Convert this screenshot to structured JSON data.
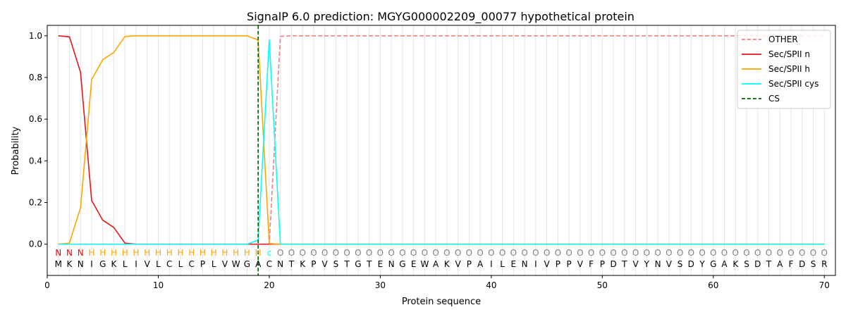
{
  "chart_data": {
    "type": "line",
    "title": "SignalP 6.0 prediction: MGYG000002209_00077 hypothetical protein",
    "xlabel": "Protein sequence",
    "ylabel": "Probability",
    "xlim": [
      0,
      71
    ],
    "ylim": [
      -0.15,
      1.05
    ],
    "x_ticks": [
      0,
      10,
      20,
      30,
      40,
      50,
      60,
      70
    ],
    "y_ticks": [
      0.0,
      0.2,
      0.4,
      0.6,
      0.8,
      1.0
    ],
    "x_tick_labels": [
      "0",
      "10",
      "20",
      "30",
      "40",
      "50",
      "60",
      "70"
    ],
    "y_tick_labels": [
      "0.0",
      "0.2",
      "0.4",
      "0.6",
      "0.8",
      "1.0"
    ],
    "grid": "vertical lines at each residue",
    "legend_position": "top-right",
    "sequence": [
      "M",
      "K",
      "N",
      "I",
      "G",
      "K",
      "L",
      "I",
      "V",
      "L",
      "C",
      "L",
      "C",
      "P",
      "L",
      "V",
      "W",
      "G",
      "A",
      "C",
      "N",
      "T",
      "K",
      "P",
      "V",
      "S",
      "T",
      "G",
      "T",
      "E",
      "N",
      "G",
      "E",
      "W",
      "A",
      "K",
      "V",
      "P",
      "A",
      "I",
      "L",
      "E",
      "N",
      "I",
      "V",
      "P",
      "P",
      "V",
      "F",
      "P",
      "D",
      "T",
      "V",
      "Y",
      "N",
      "V",
      "S",
      "D",
      "Y",
      "G",
      "A",
      "K",
      "S",
      "D",
      "T",
      "A",
      "F",
      "D",
      "S",
      "R"
    ],
    "labels": [
      "N",
      "N",
      "N",
      "H",
      "H",
      "H",
      "H",
      "H",
      "H",
      "H",
      "H",
      "H",
      "H",
      "H",
      "H",
      "H",
      "H",
      "H",
      "H",
      "c",
      "O",
      "O",
      "O",
      "O",
      "O",
      "O",
      "O",
      "O",
      "O",
      "O",
      "O",
      "O",
      "O",
      "O",
      "O",
      "O",
      "O",
      "O",
      "O",
      "O",
      "O",
      "O",
      "O",
      "O",
      "O",
      "O",
      "O",
      "O",
      "O",
      "O",
      "O",
      "O",
      "O",
      "O",
      "O",
      "O",
      "O",
      "O",
      "O",
      "O",
      "O",
      "O",
      "O",
      "O",
      "O",
      "O",
      "O",
      "O",
      "O",
      "O"
    ],
    "label_colors": {
      "N": "#ff0000",
      "H": "#ffa500",
      "c": "#00ffff",
      "O": "#808080"
    },
    "cleavage_site": 19,
    "series": [
      {
        "name": "OTHER",
        "color": "#f08080",
        "dash": true,
        "values": [
          0,
          0,
          0,
          0,
          0,
          0,
          0,
          0,
          0,
          0,
          0,
          0,
          0,
          0,
          0,
          0,
          0,
          0,
          0,
          0,
          0.997,
          1,
          1,
          1,
          1,
          1,
          1,
          1,
          1,
          1,
          1,
          1,
          1,
          1,
          1,
          1,
          1,
          1,
          1,
          1,
          1,
          1,
          1,
          1,
          1,
          1,
          1,
          1,
          1,
          1,
          1,
          1,
          1,
          1,
          1,
          1,
          1,
          1,
          1,
          1,
          1,
          1,
          1,
          1,
          1,
          1,
          1,
          1,
          1,
          1
        ]
      },
      {
        "name": "Sec/SPII n",
        "color": "#e8141c",
        "dash": false,
        "values": [
          1.0,
          0.995,
          0.825,
          0.21,
          0.115,
          0.08,
          0.005,
          0,
          0,
          0,
          0,
          0,
          0,
          0,
          0,
          0,
          0,
          0,
          0,
          0,
          0,
          0,
          0,
          0,
          0,
          0,
          0,
          0,
          0,
          0,
          0,
          0,
          0,
          0,
          0,
          0,
          0,
          0,
          0,
          0,
          0,
          0,
          0,
          0,
          0,
          0,
          0,
          0,
          0,
          0,
          0,
          0,
          0,
          0,
          0,
          0,
          0,
          0,
          0,
          0,
          0,
          0,
          0,
          0,
          0,
          0,
          0,
          0,
          0,
          0
        ]
      },
      {
        "name": "Sec/SPII h",
        "color": "#ffa500",
        "dash": false,
        "values": [
          0,
          0.005,
          0.175,
          0.79,
          0.885,
          0.92,
          0.997,
          1,
          1,
          1,
          1,
          1,
          1,
          1,
          1,
          1,
          1,
          1,
          0.98,
          0.003,
          0,
          0,
          0,
          0,
          0,
          0,
          0,
          0,
          0,
          0,
          0,
          0,
          0,
          0,
          0,
          0,
          0,
          0,
          0,
          0,
          0,
          0,
          0,
          0,
          0,
          0,
          0,
          0,
          0,
          0,
          0,
          0,
          0,
          0,
          0,
          0,
          0,
          0,
          0,
          0,
          0,
          0,
          0,
          0,
          0,
          0,
          0,
          0,
          0,
          0
        ]
      },
      {
        "name": "Sec/SPII cys",
        "color": "#00ffff",
        "dash": false,
        "values": [
          0,
          0,
          0,
          0,
          0,
          0,
          0,
          0,
          0,
          0,
          0,
          0,
          0,
          0,
          0,
          0,
          0,
          0,
          0.02,
          0.98,
          0,
          0,
          0,
          0,
          0,
          0,
          0,
          0,
          0,
          0,
          0,
          0,
          0,
          0,
          0,
          0,
          0,
          0,
          0,
          0,
          0,
          0,
          0,
          0,
          0,
          0,
          0,
          0,
          0,
          0,
          0,
          0,
          0,
          0,
          0,
          0,
          0,
          0,
          0,
          0,
          0,
          0,
          0,
          0,
          0,
          0,
          0,
          0,
          0,
          0
        ]
      }
    ],
    "legend": [
      {
        "name": "OTHER",
        "color": "#f08080",
        "dash": true
      },
      {
        "name": "Sec/SPII n",
        "color": "#e8141c",
        "dash": false
      },
      {
        "name": "Sec/SPII h",
        "color": "#ffa500",
        "dash": false
      },
      {
        "name": "Sec/SPII cys",
        "color": "#00ffff",
        "dash": false
      },
      {
        "name": "CS",
        "color": "#006400",
        "dash": true
      }
    ]
  }
}
